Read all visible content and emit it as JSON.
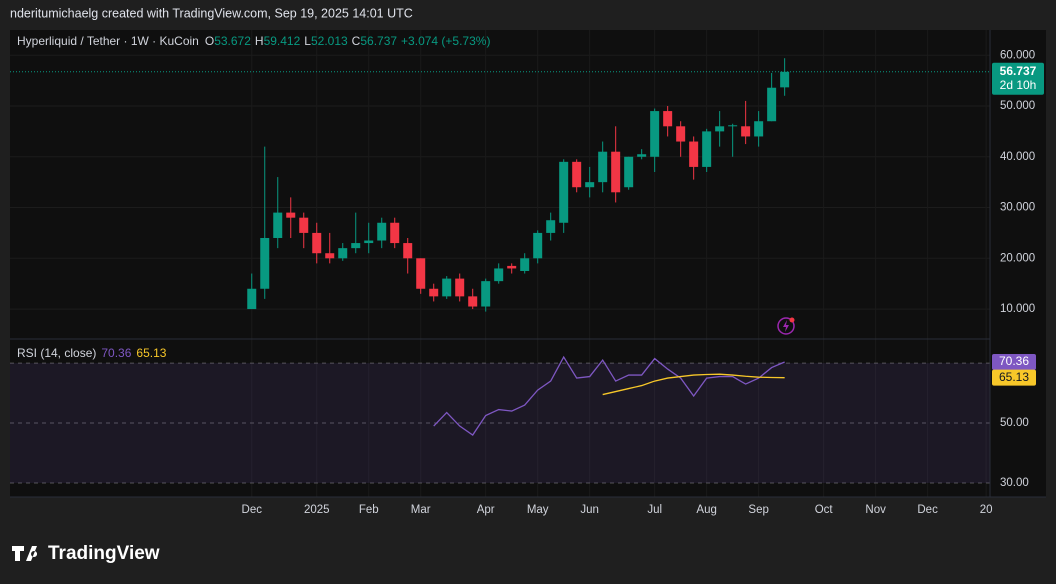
{
  "header": "nderitumichaelg created with TradingView.com, Sep 19, 2025 14:01 UTC",
  "footer": "TradingView",
  "chart_data": [
    {
      "type": "candlestick",
      "title": "Hyperliquid / Tether · 1W · KuCoin",
      "ohlc_legend": [
        {
          "label": "O",
          "value": "53.672"
        },
        {
          "label": "H",
          "value": "59.412"
        },
        {
          "label": "L",
          "value": "52.013"
        },
        {
          "label": "C",
          "value": "56.737"
        }
      ],
      "change": "+3.074 (+5.73%)",
      "last_price": "56.737",
      "countdown": "2d 10h",
      "up_color": "#089981",
      "down_color": "#f23645",
      "x": [
        0,
        1,
        2,
        3,
        4,
        5,
        6,
        7,
        8,
        9,
        10,
        11,
        12,
        13,
        14,
        15,
        16,
        17,
        18,
        19,
        20,
        21,
        22,
        23,
        24,
        25,
        26,
        27,
        28,
        29,
        30,
        31,
        32,
        33,
        34,
        35,
        36,
        37,
        38,
        39,
        40,
        41
      ],
      "open": [
        10,
        14,
        24,
        29,
        28,
        25,
        21,
        20,
        22,
        23,
        23.5,
        27,
        23,
        20,
        14,
        12.5,
        16,
        12.5,
        10.5,
        15.5,
        18.5,
        17.5,
        20,
        25,
        27,
        39,
        34,
        35,
        41,
        34,
        40,
        40,
        49,
        46,
        43,
        38,
        45,
        46,
        46,
        44,
        47,
        53.672
      ],
      "high": [
        17,
        42,
        36,
        32,
        29,
        27,
        25,
        23,
        29,
        27,
        28,
        28,
        24,
        20,
        15,
        16.5,
        17,
        14,
        16,
        19,
        19,
        21,
        25.5,
        29,
        39.5,
        39.5,
        38,
        43,
        46,
        40,
        41.5,
        49.5,
        50,
        47,
        44,
        45.5,
        49,
        46.5,
        51,
        49,
        56.5,
        59.412
      ],
      "low": [
        10,
        12,
        22,
        24,
        22,
        19,
        19,
        19.5,
        21,
        21,
        22,
        22,
        17,
        13,
        11.5,
        12,
        11.5,
        10,
        9.5,
        15,
        17,
        17,
        19,
        23.5,
        25,
        33,
        32,
        33,
        31,
        33.5,
        39.5,
        37,
        44,
        40,
        35.5,
        37,
        42,
        40,
        42.5,
        42,
        47,
        52.013
      ],
      "close": [
        14,
        24,
        29,
        28,
        25,
        21,
        20,
        22,
        23,
        23.5,
        27,
        23,
        20,
        14,
        12.5,
        16,
        12.5,
        10.5,
        15.5,
        18,
        18,
        20,
        25,
        27.5,
        39,
        34,
        35,
        41,
        33,
        40,
        40.5,
        49,
        46,
        43,
        38,
        45,
        46,
        46.2,
        44,
        47,
        53.6,
        56.737
      ],
      "xlim": [
        -18.6,
        56.8
      ],
      "xticks": [
        {
          "value": 0,
          "label": "Dec"
        },
        {
          "value": 5,
          "label": "2025"
        },
        {
          "value": 9,
          "label": "Feb"
        },
        {
          "value": 13,
          "label": "Mar"
        },
        {
          "value": 18,
          "label": "Apr"
        },
        {
          "value": 22,
          "label": "May"
        },
        {
          "value": 26,
          "label": "Jun"
        },
        {
          "value": 31,
          "label": "Jul"
        },
        {
          "value": 35,
          "label": "Aug"
        },
        {
          "value": 39,
          "label": "Sep"
        },
        {
          "value": 44,
          "label": "Oct"
        },
        {
          "value": 48,
          "label": "Nov"
        },
        {
          "value": 52,
          "label": "Dec"
        },
        {
          "value": 56.5,
          "label": "20"
        }
      ],
      "ylim": [
        4.3,
        63
      ],
      "yticks": [
        {
          "value": 10,
          "label": "10.000"
        },
        {
          "value": 20,
          "label": "20.000"
        },
        {
          "value": 30,
          "label": "30.000"
        },
        {
          "value": 40,
          "label": "40.000"
        },
        {
          "value": 50,
          "label": "50.000"
        },
        {
          "value": 60,
          "label": "60.000"
        }
      ]
    },
    {
      "type": "line",
      "title": "RSI (14, close)",
      "legend_values": [
        "70.36",
        "65.13"
      ],
      "x": [
        0,
        1,
        2,
        3,
        4,
        5,
        6,
        7,
        8,
        9,
        10,
        11,
        12,
        13,
        14,
        15,
        16,
        17,
        18,
        19,
        20,
        21,
        22,
        23,
        24,
        25,
        26,
        27,
        28,
        29,
        30,
        31,
        32,
        33,
        34,
        35,
        36,
        37,
        38,
        39,
        40,
        41
      ],
      "series": [
        {
          "color": "#7e57c2",
          "values": [
            null,
            null,
            null,
            null,
            null,
            null,
            null,
            null,
            null,
            null,
            null,
            null,
            null,
            null,
            49,
            53.5,
            49,
            46,
            52.5,
            54.5,
            54,
            56,
            61,
            64,
            72,
            65,
            65.5,
            71,
            64,
            66,
            66,
            71.5,
            68,
            65,
            59,
            65,
            65.5,
            65.5,
            63,
            65,
            68.5,
            70.36
          ]
        },
        {
          "color": "#f7c729",
          "values": [
            null,
            null,
            null,
            null,
            null,
            null,
            null,
            null,
            null,
            null,
            null,
            null,
            null,
            null,
            null,
            null,
            null,
            null,
            null,
            null,
            null,
            null,
            null,
            null,
            null,
            null,
            null,
            59.5,
            60.5,
            61.5,
            62.5,
            64,
            65,
            65.5,
            66,
            66.2,
            66.3,
            66,
            65.6,
            65.3,
            65.2,
            65.13
          ]
        }
      ],
      "xlim": [
        -18.6,
        56.8
      ],
      "ylim": [
        27,
        77.7
      ],
      "yticks": [
        {
          "value": 30,
          "label": "30.00"
        },
        {
          "value": 50,
          "label": "50.00"
        },
        {
          "value": 70,
          "label": "70.00"
        }
      ],
      "band": [
        30,
        70
      ]
    }
  ]
}
